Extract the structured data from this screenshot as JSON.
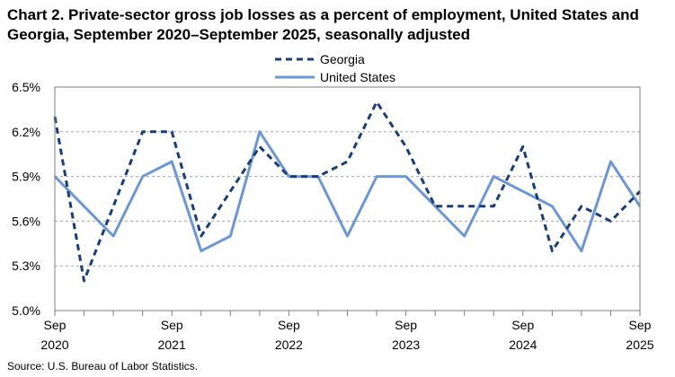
{
  "chart_data": {
    "type": "line",
    "title": "Chart 2. Private-sector gross job losses as a percent of employment, United States and Georgia, September 2020–September 2025, seasonally adjusted",
    "source": "Source: U.S. Bureau of Labor Statistics.",
    "x": [
      "Sep 2020",
      "Dec 2020",
      "Mar 2021",
      "Jun 2021",
      "Sep 2021",
      "Dec 2021",
      "Mar 2022",
      "Jun 2022",
      "Sep 2022",
      "Dec 2022",
      "Mar 2023",
      "Jun 2023",
      "Sep 2023",
      "Dec 2023",
      "Mar 2024",
      "Jun 2024",
      "Sep 2024",
      "Dec 2024",
      "Mar 2025",
      "Jun 2025",
      "Sep 2025"
    ],
    "x_tick_labels": [
      {
        "index": 0,
        "month": "Sep",
        "year": "2020"
      },
      {
        "index": 4,
        "month": "Sep",
        "year": "2021"
      },
      {
        "index": 8,
        "month": "Sep",
        "year": "2022"
      },
      {
        "index": 12,
        "month": "Sep",
        "year": "2023"
      },
      {
        "index": 16,
        "month": "Sep",
        "year": "2024"
      },
      {
        "index": 20,
        "month": "Sep",
        "year": "2025"
      }
    ],
    "y_ticks": [
      "5.0%",
      "5.3%",
      "5.6%",
      "5.9%",
      "6.2%",
      "6.5%"
    ],
    "ylim": [
      5.0,
      6.5
    ],
    "grid": true,
    "legend_position": "top-center",
    "series": [
      {
        "name": "Georgia",
        "color": "#1a3e7a",
        "style": "dashed",
        "values": [
          6.3,
          5.2,
          5.7,
          6.2,
          6.2,
          5.5,
          5.8,
          6.1,
          5.9,
          5.9,
          6.0,
          6.4,
          6.1,
          5.7,
          5.7,
          5.7,
          6.1,
          5.4,
          5.7,
          5.6,
          5.8
        ]
      },
      {
        "name": "United States",
        "color": "#6d97d3",
        "style": "solid",
        "values": [
          5.9,
          5.7,
          5.5,
          5.9,
          6.0,
          5.4,
          5.5,
          6.2,
          5.9,
          5.9,
          5.5,
          5.9,
          5.9,
          5.7,
          5.5,
          5.9,
          5.8,
          5.7,
          5.4,
          6.0,
          5.7
        ]
      }
    ]
  }
}
